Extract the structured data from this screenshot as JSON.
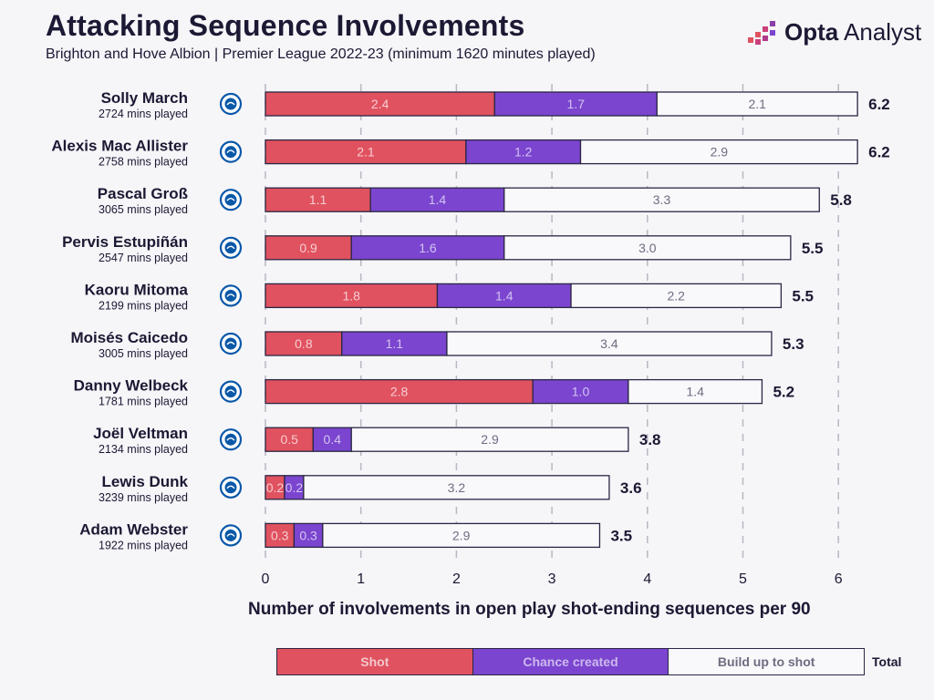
{
  "header": {
    "title": "Attacking Sequence Involvements",
    "subtitle": "Brighton and Hove Albion | Premier League 2022-23 (minimum 1620 minutes played)",
    "brand_bold": "Opta",
    "brand_light": " Analyst"
  },
  "colors": {
    "shot": "#e0525f",
    "chance": "#7b45cf",
    "buildup": "#f9f8fb",
    "outline": "#2a2744",
    "background": "#f6f5f8"
  },
  "chart_data": {
    "type": "bar",
    "orientation": "horizontal",
    "stacked": true,
    "title": "Attacking Sequence Involvements",
    "subtitle": "Brighton and Hove Albion | Premier League 2022-23 (minimum 1620 minutes played)",
    "xlabel": "Number of involvements in open play shot-ending sequences per 90",
    "ylabel": "",
    "xlim": [
      0,
      6.4
    ],
    "xticks": [
      0,
      1,
      2,
      3,
      4,
      5,
      6
    ],
    "grid": "vertical dashed",
    "legend": "bottom",
    "legend_total_label": "Total",
    "categories": [
      "Solly March",
      "Alexis Mac Allister",
      "Pascal Groß",
      "Pervis Estupiñán",
      "Kaoru Mitoma",
      "Moisés Caicedo",
      "Danny Welbeck",
      "Joël Veltman",
      "Lewis Dunk",
      "Adam Webster"
    ],
    "minutes": [
      "2724 mins played",
      "2758 mins played",
      "3065 mins played",
      "2547 mins played",
      "2199 mins played",
      "3005 mins played",
      "1781 mins played",
      "2134 mins played",
      "3239 mins played",
      "1922 mins played"
    ],
    "series": [
      {
        "name": "Shot",
        "values": [
          2.4,
          2.1,
          1.1,
          0.9,
          1.8,
          0.8,
          2.8,
          0.5,
          0.2,
          0.3
        ],
        "labels": [
          "2.4",
          "2.1",
          "1.1",
          "0.9",
          "1.8",
          "0.8",
          "2.8",
          "0.5",
          "0.2",
          "0.3"
        ]
      },
      {
        "name": "Chance created",
        "values": [
          1.7,
          1.2,
          1.4,
          1.6,
          1.4,
          1.1,
          1.0,
          0.4,
          0.2,
          0.3
        ],
        "labels": [
          "1.7",
          "1.2",
          "1.4",
          "1.6",
          "1.4",
          "1.1",
          "1.0",
          "0.4",
          "0.2",
          "0.3"
        ]
      },
      {
        "name": "Build up to shot",
        "values": [
          2.1,
          2.9,
          3.3,
          3.0,
          2.2,
          3.4,
          1.4,
          2.9,
          3.2,
          2.9
        ],
        "labels": [
          "2.1",
          "2.9",
          "3.3",
          "3.0",
          "2.2",
          "3.4",
          "1.4",
          "2.9",
          "3.2",
          "2.9"
        ]
      }
    ],
    "totals": [
      6.2,
      6.2,
      5.8,
      5.5,
      5.5,
      5.3,
      5.2,
      3.8,
      3.6,
      3.5
    ],
    "total_labels": [
      "6.2",
      "6.2",
      "5.8",
      "5.5",
      "5.5",
      "5.3",
      "5.2",
      "3.8",
      "3.6",
      "3.5"
    ]
  }
}
